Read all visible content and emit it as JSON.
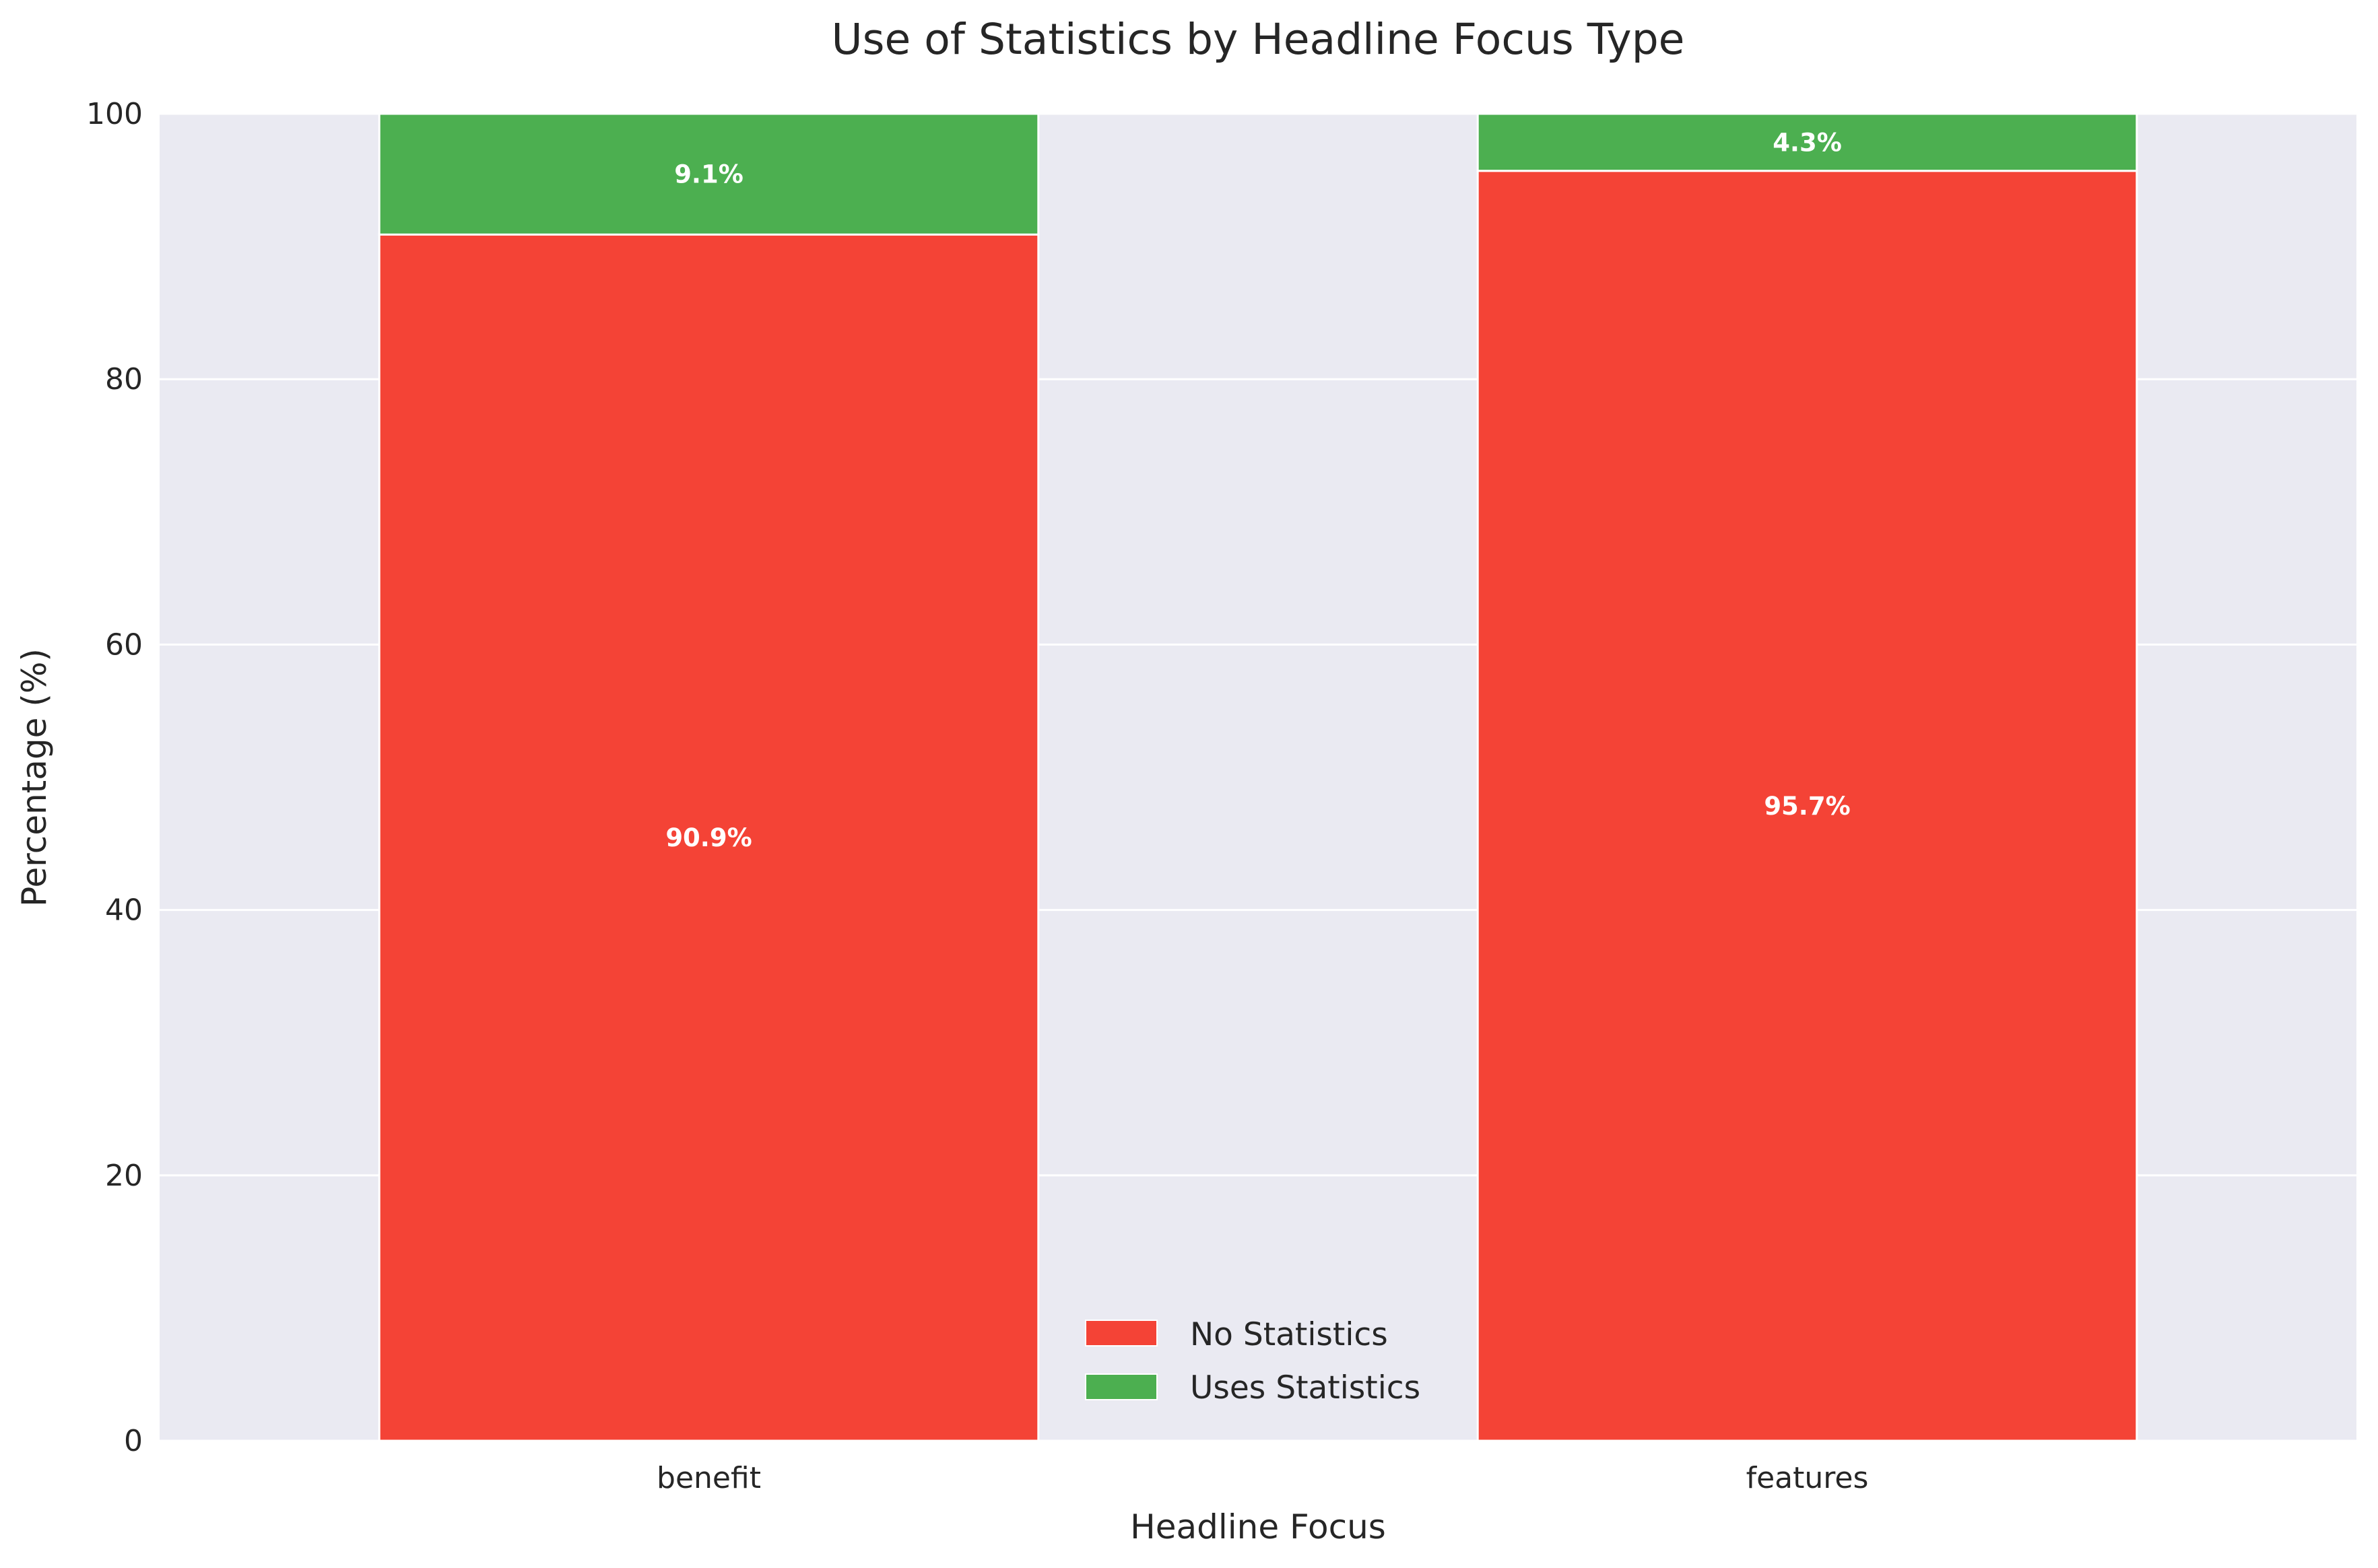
{
  "chart_data": {
    "type": "bar",
    "stacked": true,
    "title": "Use of Statistics by Headline Focus Type",
    "xlabel": "Headline Focus",
    "ylabel": "Percentage (%)",
    "categories": [
      "benefit",
      "features"
    ],
    "series": [
      {
        "name": "No Statistics",
        "color": "#f44336",
        "values": [
          90.9,
          95.7
        ],
        "labels": [
          "90.9%",
          "95.7%"
        ]
      },
      {
        "name": "Uses Statistics",
        "color": "#4caf50",
        "values": [
          9.1,
          4.3
        ],
        "labels": [
          "9.1%",
          "4.3%"
        ]
      }
    ],
    "ylim": [
      0,
      100
    ],
    "yticks": [
      0,
      20,
      40,
      60,
      80,
      100
    ],
    "grid": true,
    "legend_position": "bottom-center",
    "background_color": "#eaeaf2"
  }
}
